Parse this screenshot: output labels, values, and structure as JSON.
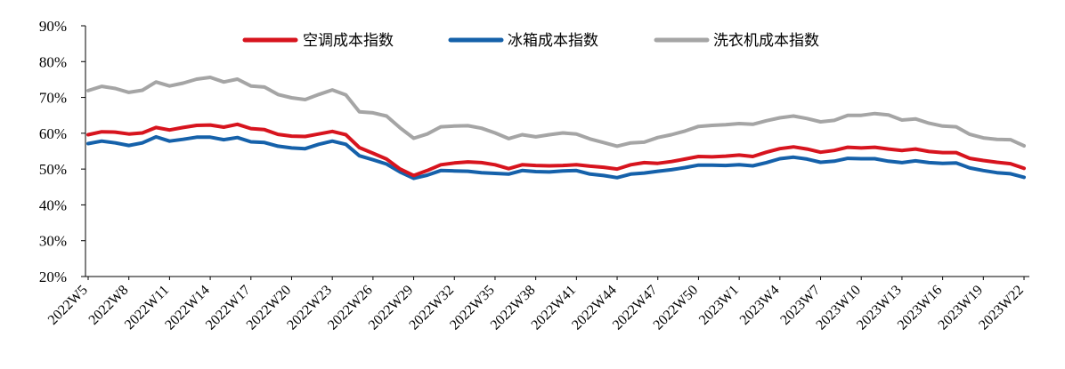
{
  "chart_data": {
    "type": "line",
    "title": "",
    "xlabel": "",
    "ylabel": "",
    "ylim": [
      20,
      90
    ],
    "y_ticks": [
      "20%",
      "30%",
      "40%",
      "50%",
      "60%",
      "70%",
      "80%",
      "90%"
    ],
    "x_tick_labels": [
      "2022W5",
      "2022W8",
      "2022W11",
      "2022W14",
      "2022W17",
      "2022W20",
      "2022W23",
      "2022W26",
      "2022W29",
      "2022W32",
      "2022W35",
      "2022W38",
      "2022W41",
      "2022W44",
      "2022W47",
      "2022W50",
      "2023W1",
      "2023W4",
      "2023W7",
      "2023W10",
      "2023W13",
      "2023W16",
      "2023W19",
      "2023W22"
    ],
    "grid": false,
    "legend_position": "top",
    "series": [
      {
        "name": "空调成本指数",
        "color": "#d7141e",
        "values": [
          59.6,
          60.4,
          60.3,
          59.8,
          60.1,
          61.6,
          60.9,
          61.6,
          62.2,
          62.3,
          61.7,
          62.5,
          61.3,
          61.0,
          59.7,
          59.2,
          59.1,
          59.8,
          60.5,
          59.6,
          56.0,
          54.4,
          52.8,
          50.0,
          48.2,
          49.6,
          51.2,
          51.7,
          52.0,
          51.8,
          51.2,
          50.1,
          51.2,
          51.0,
          50.9,
          51.0,
          51.2,
          50.8,
          50.5,
          50.0,
          51.2,
          51.8,
          51.6,
          52.1,
          52.8,
          53.5,
          53.4,
          53.6,
          53.9,
          53.5,
          54.7,
          55.7,
          56.2,
          55.6,
          54.7,
          55.2,
          56.1,
          55.9,
          56.1,
          55.6,
          55.2,
          55.6,
          54.9,
          54.6,
          54.6,
          53.0,
          52.4,
          51.9,
          51.5,
          50.2
        ]
      },
      {
        "name": "冰箱成本指数",
        "color": "#1561aa",
        "values": [
          57.1,
          57.8,
          57.3,
          56.6,
          57.3,
          59.0,
          57.8,
          58.3,
          58.9,
          58.9,
          58.2,
          58.8,
          57.6,
          57.4,
          56.4,
          55.9,
          55.7,
          56.9,
          57.8,
          56.9,
          53.7,
          52.6,
          51.4,
          49.2,
          47.4,
          48.3,
          49.6,
          49.5,
          49.4,
          49.0,
          48.8,
          48.6,
          49.6,
          49.3,
          49.2,
          49.5,
          49.6,
          48.6,
          48.2,
          47.6,
          48.6,
          48.9,
          49.4,
          49.8,
          50.4,
          51.1,
          51.1,
          51.0,
          51.2,
          50.9,
          51.8,
          52.9,
          53.3,
          52.8,
          51.9,
          52.2,
          53.0,
          52.9,
          52.9,
          52.2,
          51.8,
          52.3,
          51.8,
          51.6,
          51.7,
          50.3,
          49.6,
          49.0,
          48.7,
          47.7
        ]
      },
      {
        "name": "洗衣机成本指数",
        "color": "#a5a5a5",
        "values": [
          71.9,
          73.1,
          72.5,
          71.4,
          72.0,
          74.3,
          73.2,
          74.0,
          75.1,
          75.6,
          74.3,
          75.1,
          73.2,
          72.9,
          70.8,
          69.9,
          69.4,
          70.8,
          72.1,
          70.7,
          66.0,
          65.7,
          64.8,
          61.5,
          58.6,
          59.8,
          61.8,
          62.0,
          62.1,
          61.4,
          60.1,
          58.5,
          59.6,
          59.0,
          59.6,
          60.1,
          59.8,
          58.4,
          57.4,
          56.4,
          57.3,
          57.5,
          58.8,
          59.6,
          60.6,
          61.9,
          62.2,
          62.4,
          62.7,
          62.5,
          63.5,
          64.3,
          64.8,
          64.1,
          63.2,
          63.6,
          65.0,
          65.0,
          65.5,
          65.1,
          63.7,
          64.0,
          62.8,
          62.0,
          61.8,
          59.7,
          58.7,
          58.3,
          58.2,
          56.5
        ]
      }
    ]
  }
}
